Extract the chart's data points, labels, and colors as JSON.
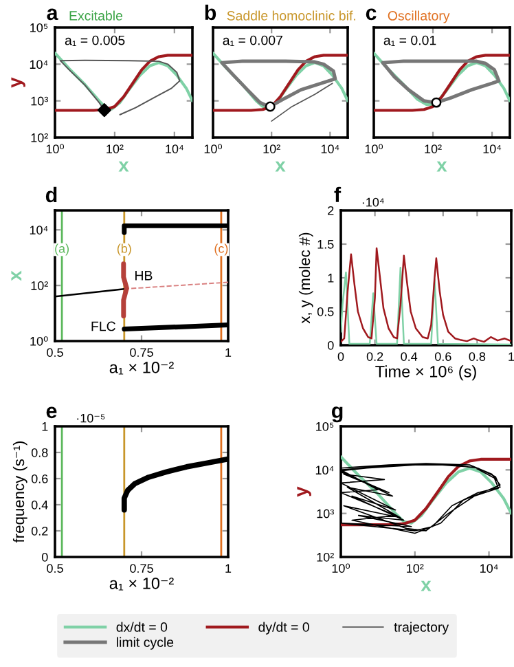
{
  "chart_data": [
    {
      "type": "line",
      "title": "a",
      "subtitle": "Excitable",
      "xlabel": "x",
      "ylabel": "y",
      "log": "xy",
      "xlim": [
        1,
        40000
      ],
      "ylim": [
        100,
        100000
      ],
      "xticks": [
        {
          "value": 1,
          "label": "10⁰"
        },
        {
          "value": 100,
          "label": "10²"
        },
        {
          "value": 10000,
          "label": "10⁴"
        }
      ],
      "yticks": [
        {
          "value": 100,
          "label": "10²"
        },
        {
          "value": 1000,
          "label": "10³"
        },
        {
          "value": 10000,
          "label": "10⁴"
        },
        {
          "value": 100000,
          "label": "10⁵"
        }
      ],
      "annotations": [
        "a₁ = 0.005"
      ],
      "legend": "bottom",
      "series": [
        {
          "name": "dx/dt = 0",
          "color": "#7fd1a6",
          "x": [
            1,
            3,
            10,
            30,
            50,
            80,
            150,
            300,
            700,
            1500,
            3000,
            6000,
            12000,
            25000,
            40000
          ],
          "values": [
            20000,
            7500,
            2800,
            1000,
            650,
            600,
            900,
            2000,
            5000,
            9000,
            11000,
            9000,
            5000,
            2200,
            1000
          ]
        },
        {
          "name": "dy/dt = 0",
          "color": "#a0191e",
          "x": [
            1,
            20,
            50,
            100,
            200,
            400,
            800,
            1500,
            3000,
            6000,
            40000
          ],
          "values": [
            550,
            550,
            580,
            700,
            1300,
            3000,
            7000,
            12000,
            16000,
            17500,
            17500
          ]
        },
        {
          "name": "trajectory",
          "color": "#555555",
          "x": [
            150,
            500,
            2000,
            8000,
            15000,
            12000,
            6000,
            3000,
            300,
            10,
            1.5,
            3,
            10,
            30,
            45
          ],
          "values": [
            420,
            650,
            1200,
            2200,
            3500,
            6000,
            10000,
            12000,
            12500,
            12700,
            12500,
            7000,
            2700,
            900,
            560
          ]
        },
        {
          "type": "scatter",
          "marker": "diamond",
          "color": "#000000",
          "x": [
            45
          ],
          "values": [
            560
          ]
        }
      ]
    },
    {
      "type": "line",
      "title": "b",
      "subtitle": "Saddle homoclinic bif.",
      "xlabel": "x",
      "log": "xy",
      "xlim": [
        1,
        40000
      ],
      "ylim": [
        100,
        100000
      ],
      "tick_labels": "x",
      "xticks": [
        {
          "value": 1,
          "label": "10⁰"
        },
        {
          "value": 100,
          "label": "10²"
        },
        {
          "value": 10000,
          "label": "10⁴"
        }
      ],
      "yticks": [
        {
          "value": 100,
          "label": "10²"
        },
        {
          "value": 1000,
          "label": "10³"
        },
        {
          "value": 10000,
          "label": "10⁴"
        },
        {
          "value": 100000,
          "label": "10⁵"
        }
      ],
      "annotations": [
        "a₁ = 0.007"
      ],
      "legend": "bottom",
      "series": [
        {
          "name": "dx/dt = 0",
          "color": "#7fd1a6",
          "x": [
            1,
            3,
            10,
            30,
            50,
            80,
            150,
            300,
            700,
            1500,
            3000,
            6000,
            12000,
            25000,
            40000
          ],
          "values": [
            20000,
            7500,
            2800,
            1000,
            700,
            650,
            900,
            2000,
            5000,
            9000,
            11000,
            9000,
            5000,
            2200,
            1000
          ]
        },
        {
          "name": "dy/dt = 0",
          "color": "#a0191e",
          "x": [
            1,
            20,
            50,
            100,
            200,
            400,
            800,
            1500,
            3000,
            6000,
            40000
          ],
          "values": [
            550,
            550,
            580,
            700,
            1300,
            3000,
            7000,
            12000,
            16000,
            17500,
            17500
          ]
        },
        {
          "name": "limit cycle",
          "color": "#777777",
          "x": [
            90,
            300,
            1000,
            5000,
            15000,
            13000,
            6000,
            3000,
            300,
            10,
            2,
            5,
            15,
            40,
            75
          ],
          "values": [
            700,
            1200,
            2000,
            3000,
            4000,
            6500,
            10000,
            11500,
            12000,
            12000,
            11000,
            5000,
            2000,
            900,
            720
          ]
        },
        {
          "name": "trajectory",
          "color": "#555555",
          "x": [
            100,
            500,
            3000,
            12000
          ],
          "values": [
            280,
            700,
            1500,
            3000
          ]
        },
        {
          "type": "scatter",
          "marker": "circle",
          "color": "#ffffff",
          "x": [
            90
          ],
          "values": [
            700
          ]
        }
      ]
    },
    {
      "type": "line",
      "title": "c",
      "subtitle": "Oscillatory",
      "xlabel": "x",
      "log": "xy",
      "xlim": [
        1,
        40000
      ],
      "ylim": [
        100,
        100000
      ],
      "tick_labels": "x",
      "xticks": [
        {
          "value": 1,
          "label": "10⁰"
        },
        {
          "value": 100,
          "label": "10²"
        },
        {
          "value": 10000,
          "label": "10⁴"
        }
      ],
      "yticks": [
        {
          "value": 100,
          "label": "10²"
        },
        {
          "value": 1000,
          "label": "10³"
        },
        {
          "value": 10000,
          "label": "10⁴"
        },
        {
          "value": 100000,
          "label": "10⁵"
        }
      ],
      "annotations": [
        "a₁ = 0.01"
      ],
      "legend": "bottom",
      "series": [
        {
          "name": "dx/dt = 0",
          "color": "#7fd1a6",
          "x": [
            1,
            3,
            10,
            30,
            60,
            100,
            150,
            300,
            700,
            1500,
            3000,
            6000,
            12000,
            25000,
            40000
          ],
          "values": [
            20000,
            7500,
            2800,
            1100,
            800,
            800,
            1000,
            2000,
            5000,
            9000,
            11000,
            9000,
            5000,
            2200,
            1000
          ]
        },
        {
          "name": "dy/dt = 0",
          "color": "#a0191e",
          "x": [
            1,
            20,
            50,
            100,
            200,
            400,
            800,
            1500,
            3000,
            6000,
            40000
          ],
          "values": [
            550,
            550,
            580,
            700,
            1300,
            3000,
            7000,
            12000,
            16000,
            17500,
            17500
          ]
        },
        {
          "name": "limit cycle",
          "color": "#777777",
          "x": [
            130,
            400,
            2000,
            10000,
            17000,
            12000,
            6000,
            3000,
            300,
            10,
            2,
            5,
            15,
            50,
            110
          ],
          "values": [
            900,
            1200,
            2000,
            3000,
            3500,
            7000,
            10500,
            12000,
            12000,
            12000,
            11000,
            4500,
            2000,
            1000,
            910
          ]
        },
        {
          "type": "scatter",
          "marker": "circle",
          "color": "#ffffff",
          "x": [
            130
          ],
          "values": [
            900
          ]
        }
      ]
    },
    {
      "type": "line",
      "title": "d",
      "xlabel": "a₁ × 10⁻²",
      "ylabel": "x",
      "log": "y",
      "xlim": [
        0.5,
        1
      ],
      "ylim": [
        1,
        50000
      ],
      "xticks": [
        0.5,
        0.75,
        1
      ],
      "yticks": [
        {
          "value": 1,
          "label": "10⁰"
        },
        {
          "value": 100,
          "label": "10²"
        },
        {
          "value": 10000,
          "label": "10⁴"
        }
      ],
      "ref_lines": [
        {
          "axis": "x",
          "value": 0.52,
          "label": "(a)",
          "color": "#5cb85c"
        },
        {
          "axis": "x",
          "value": 0.7,
          "label": "(b)",
          "color": "#c8962a"
        },
        {
          "axis": "x",
          "value": 0.98,
          "label": "(c)",
          "color": "#e07020"
        }
      ],
      "annotations": [
        {
          "text": "HB",
          "x": 0.707,
          "y": 80
        },
        {
          "text": "FLC",
          "x": 0.698,
          "y": 8
        }
      ],
      "series": [
        {
          "color": "#000000",
          "x": [
            0.5,
            0.7
          ],
          "values": [
            40,
            75
          ]
        },
        {
          "color": "#d98080",
          "line_style": "dashed",
          "x": [
            0.7,
            1
          ],
          "values": [
            75,
            130
          ]
        },
        {
          "color": "#b5403a",
          "x": [
            0.698,
            0.698,
            0.707,
            0.698,
            0.698
          ],
          "values": [
            600,
            200,
            80,
            30,
            8
          ]
        },
        {
          "color": "#000000",
          "x": [
            0.7,
            0.7,
            1
          ],
          "values": [
            8000,
            14000,
            14000
          ]
        },
        {
          "color": "#000000",
          "x": [
            0.7,
            1
          ],
          "values": [
            2.7,
            3.8
          ]
        }
      ]
    },
    {
      "type": "line",
      "title": "f",
      "xlabel": "Time × 10⁶ (s)",
      "ylabel": "x, y (molec #)",
      "xlim": [
        0,
        1
      ],
      "ylim": [
        0,
        2
      ],
      "xticks": [
        0,
        0.2,
        0.4,
        0.6,
        0.8,
        1
      ],
      "yticks": [
        0,
        0.5,
        1,
        1.5,
        2
      ],
      "annotations": [
        "·10⁴"
      ],
      "series": [
        {
          "color": "#7fd1a6",
          "x": [
            0,
            0.01,
            0.03,
            0.05,
            0.17,
            0.19,
            0.21,
            0.33,
            0.35,
            0.37,
            0.53,
            0.55,
            0.57,
            1
          ],
          "values": [
            0.2,
            0.6,
            1.08,
            0.02,
            0.02,
            0.77,
            0.02,
            0.02,
            1.15,
            0.02,
            0.02,
            0.98,
            0.02,
            0.01
          ]
        },
        {
          "color": "#a0191e",
          "x": [
            0,
            0.02,
            0.04,
            0.06,
            0.08,
            0.1,
            0.13,
            0.16,
            0.18,
            0.2,
            0.21,
            0.23,
            0.25,
            0.28,
            0.31,
            0.33,
            0.35,
            0.37,
            0.39,
            0.41,
            0.44,
            0.48,
            0.51,
            0.53,
            0.55,
            0.56,
            0.58,
            0.6,
            0.63,
            0.67,
            0.7,
            0.74,
            0.78,
            0.8,
            0.84,
            0.88,
            0.92,
            0.96,
            1
          ],
          "values": [
            0.05,
            0.1,
            0.8,
            1.35,
            0.9,
            0.5,
            0.25,
            0.12,
            0.1,
            0.7,
            1.44,
            1.0,
            0.55,
            0.25,
            0.12,
            0.1,
            0.6,
            1.33,
            0.9,
            0.5,
            0.25,
            0.12,
            0.1,
            0.3,
            1.0,
            1.29,
            0.8,
            0.45,
            0.2,
            0.1,
            0.08,
            0.06,
            0.1,
            0.08,
            0.05,
            0.12,
            0.07,
            0.1,
            0.06
          ]
        }
      ]
    },
    {
      "type": "line",
      "title": "e",
      "xlabel": "a₁ × 10⁻²",
      "ylabel": "frequency (s⁻¹)",
      "xlim": [
        0.5,
        1
      ],
      "ylim": [
        0,
        1
      ],
      "xticks": [
        0.5,
        0.75,
        1
      ],
      "yticks": [
        0,
        0.2,
        0.4,
        0.6,
        0.8,
        1
      ],
      "annotations": [
        "·10⁻⁵"
      ],
      "ref_lines": [
        {
          "axis": "x",
          "value": 0.52,
          "color": "#5cb85c"
        },
        {
          "axis": "x",
          "value": 0.7,
          "color": "#c8962a"
        },
        {
          "axis": "x",
          "value": 0.98,
          "color": "#e07020"
        }
      ],
      "series": [
        {
          "color": "#000000",
          "x": [
            0.7,
            0.7,
            0.71,
            0.73,
            0.77,
            0.82,
            0.88,
            0.94,
            1
          ],
          "values": [
            0.36,
            0.45,
            0.51,
            0.56,
            0.61,
            0.65,
            0.69,
            0.72,
            0.75
          ]
        }
      ]
    },
    {
      "type": "line",
      "title": "g",
      "xlabel": "x",
      "ylabel": "y",
      "log": "xy",
      "xlim": [
        1,
        40000
      ],
      "ylim": [
        100,
        100000
      ],
      "xticks": [
        {
          "value": 1,
          "label": "10⁰"
        },
        {
          "value": 100,
          "label": "10²"
        },
        {
          "value": 10000,
          "label": "10⁴"
        }
      ],
      "yticks": [
        {
          "value": 100,
          "label": "10²"
        },
        {
          "value": 1000,
          "label": "10³"
        },
        {
          "value": 10000,
          "label": "10⁴"
        },
        {
          "value": 100000,
          "label": "10⁵"
        }
      ],
      "legend": "bottom",
      "series": [
        {
          "name": "dx/dt = 0",
          "color": "#7fd1a6",
          "x": [
            1,
            3,
            10,
            30,
            50,
            80,
            150,
            300,
            700,
            1500,
            3000,
            6000,
            12000,
            25000,
            40000
          ],
          "values": [
            20000,
            7500,
            2800,
            1000,
            650,
            600,
            900,
            2000,
            5000,
            9000,
            11000,
            9000,
            5000,
            2200,
            1000
          ]
        },
        {
          "name": "dy/dt = 0",
          "color": "#a0191e",
          "x": [
            1,
            20,
            50,
            100,
            200,
            400,
            800,
            1500,
            3000,
            6000,
            40000
          ],
          "values": [
            550,
            550,
            580,
            700,
            1300,
            3000,
            7000,
            12000,
            16000,
            17500,
            17500
          ]
        },
        {
          "color": "#000000",
          "x": [
            1,
            20,
            1.2,
            15,
            1,
            30,
            2,
            50,
            3,
            80,
            1,
            100,
            300,
            1000,
            5000,
            20000,
            15000,
            5000,
            1000,
            100,
            5,
            1,
            25,
            1.5,
            40,
            1.2,
            60,
            200,
            800,
            4000,
            18000,
            14000,
            4000,
            300,
            10,
            1,
            10,
            1,
            30,
            2,
            100,
            500,
            2000,
            10000,
            20000,
            12000,
            3000,
            200,
            20,
            1
          ],
          "values": [
            9000,
            3000,
            8000,
            6000,
            5000,
            1200,
            2500,
            700,
            900,
            500,
            600,
            400,
            500,
            1500,
            3000,
            4000,
            7000,
            11000,
            13000,
            13000,
            11000,
            9500,
            2500,
            4000,
            800,
            1500,
            450,
            400,
            1000,
            2500,
            3800,
            6500,
            11500,
            13500,
            12000,
            10000,
            3500,
            3000,
            900,
            700,
            350,
            600,
            2000,
            3500,
            4500,
            8000,
            13000,
            14000,
            13000,
            11000
          ]
        }
      ]
    }
  ]
}
